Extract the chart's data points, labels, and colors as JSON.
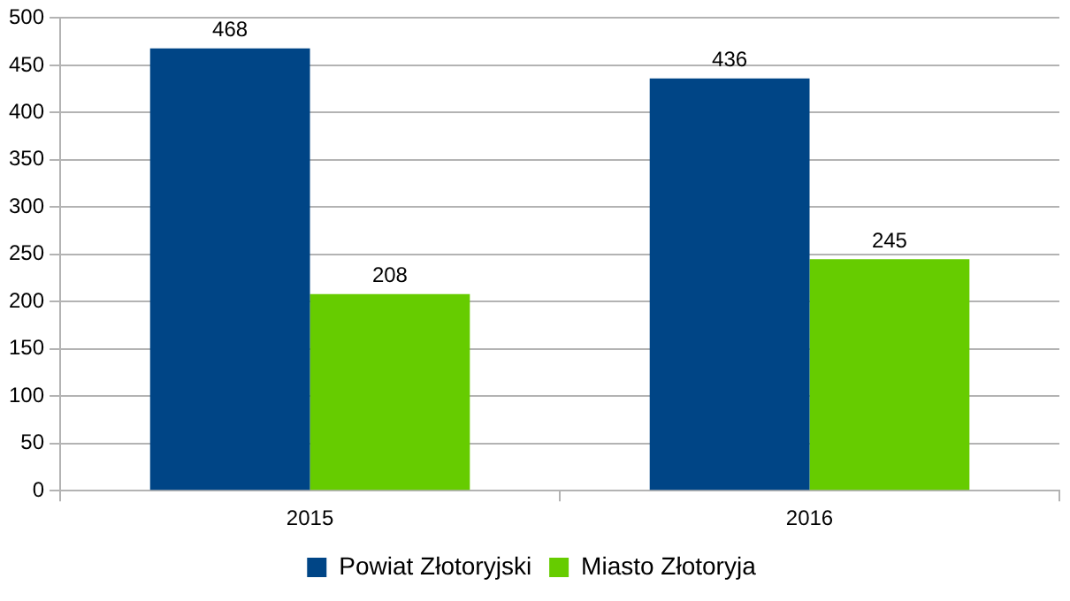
{
  "chart_data": {
    "type": "bar",
    "categories": [
      "2015",
      "2016"
    ],
    "series": [
      {
        "name": "Powiat Złotoryjski",
        "color": "#004586",
        "values": [
          468,
          436
        ]
      },
      {
        "name": "Miasto Złotoryja",
        "color": "#66cc00",
        "values": [
          208,
          245
        ]
      }
    ],
    "ylim": [
      0,
      500
    ],
    "yticks": [
      0,
      50,
      100,
      150,
      200,
      250,
      300,
      350,
      400,
      450,
      500
    ],
    "grid": "y",
    "legend": "bottom",
    "data_labels": true
  }
}
